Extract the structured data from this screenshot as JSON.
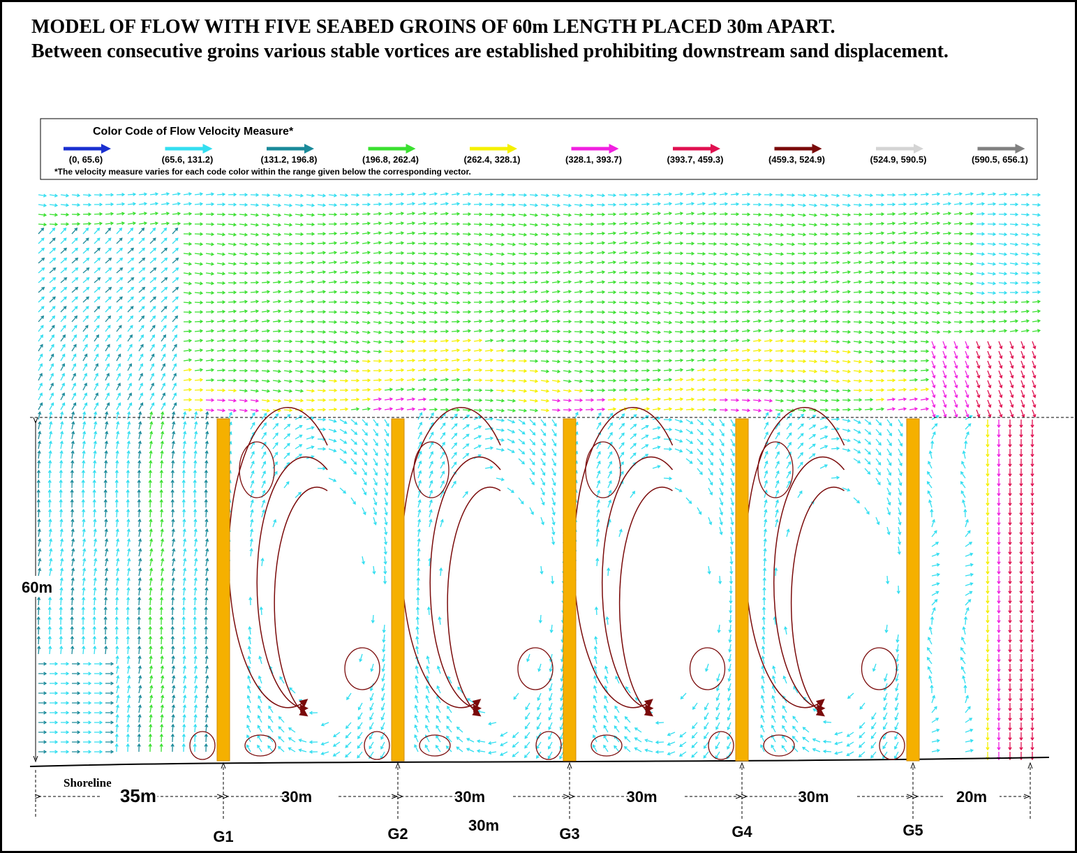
{
  "title": "MODEL OF FLOW WITH FIVE SEABED GROINS OF 60m LENGTH PLACED 30m APART.",
  "subtitle": "Between consecutive groins various stable vortices are established prohibiting downstream sand displacement.",
  "legend": {
    "title": "Color Code of Flow Velocity Measure*",
    "items": [
      {
        "label": "(0, 65.6)",
        "color": "#1a2fd0"
      },
      {
        "label": "(65.6, 131.2)",
        "color": "#33def0"
      },
      {
        "label": "(131.2, 196.8)",
        "color": "#1a8a9a"
      },
      {
        "label": "(196.8, 262.4)",
        "color": "#3ae030"
      },
      {
        "label": "(262.4, 328.1)",
        "color": "#f5f000"
      },
      {
        "label": "(328.1, 393.7)",
        "color": "#f020e0"
      },
      {
        "label": "(393.7, 459.3)",
        "color": "#e01050"
      },
      {
        "label": "(459.3, 524.9)",
        "color": "#7a0a0a"
      },
      {
        "label": "(524.9, 590.5)",
        "color": "#d4d4d4"
      },
      {
        "label": "(590.5, 656.1)",
        "color": "#808080"
      }
    ],
    "note": "*The velocity measure varies for each code color within the range given below the corresponding vector."
  },
  "diagram": {
    "height_label": "60m",
    "shoreline": "Shoreline",
    "spacings": [
      "35m",
      "30m",
      "30m",
      "30m",
      "30m",
      "20m"
    ],
    "extra_spacing": "30m",
    "groins": [
      "G1",
      "G2",
      "G3",
      "G4",
      "G5"
    ]
  }
}
